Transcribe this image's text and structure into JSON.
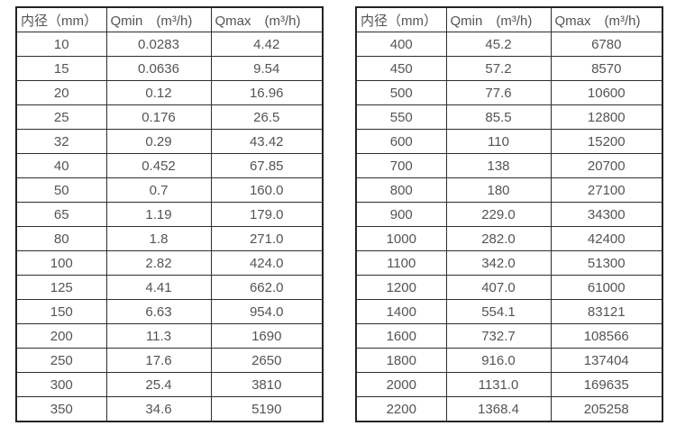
{
  "page": {
    "background": "#ffffff"
  },
  "colors": {
    "outer_border": "#242424",
    "inner_border": "#2e2e2e",
    "text": "#545454"
  },
  "tables": [
    {
      "name": "flow-range-small-diameters",
      "columns": [
        "内径（mm）",
        "Qmin　(m³/h)",
        "Qmax　(m³/h)"
      ],
      "rows": [
        [
          "10",
          "0.0283",
          "4.42"
        ],
        [
          "15",
          "0.0636",
          "9.54"
        ],
        [
          "20",
          "0.12",
          "16.96"
        ],
        [
          "25",
          "0.176",
          "26.5"
        ],
        [
          "32",
          "0.29",
          "43.42"
        ],
        [
          "40",
          "0.452",
          "67.85"
        ],
        [
          "50",
          "0.7",
          "160.0"
        ],
        [
          "65",
          "1.19",
          "179.0"
        ],
        [
          "80",
          "1.8",
          "271.0"
        ],
        [
          "100",
          "2.82",
          "424.0"
        ],
        [
          "125",
          "4.41",
          "662.0"
        ],
        [
          "150",
          "6.63",
          "954.0"
        ],
        [
          "200",
          "11.3",
          "1690"
        ],
        [
          "250",
          "17.6",
          "2650"
        ],
        [
          "300",
          "25.4",
          "3810"
        ],
        [
          "350",
          "34.6",
          "5190"
        ]
      ]
    },
    {
      "name": "flow-range-large-diameters",
      "columns": [
        "内径（mm）",
        "Qmin　(m³/h)",
        "Qmax　(m³/h)"
      ],
      "rows": [
        [
          "400",
          "45.2",
          "6780"
        ],
        [
          "450",
          "57.2",
          "8570"
        ],
        [
          "500",
          "77.6",
          "10600"
        ],
        [
          "550",
          "85.5",
          "12800"
        ],
        [
          "600",
          "110",
          "15200"
        ],
        [
          "700",
          "138",
          "20700"
        ],
        [
          "800",
          "180",
          "27100"
        ],
        [
          "900",
          "229.0",
          "34300"
        ],
        [
          "1000",
          "282.0",
          "42400"
        ],
        [
          "1100",
          "342.0",
          "51300"
        ],
        [
          "1200",
          "407.0",
          "61000"
        ],
        [
          "1400",
          "554.1",
          "83121"
        ],
        [
          "1600",
          "732.7",
          "108566"
        ],
        [
          "1800",
          "916.0",
          "137404"
        ],
        [
          "2000",
          "1131.0",
          "169635"
        ],
        [
          "2200",
          "1368.4",
          "205258"
        ]
      ]
    }
  ]
}
